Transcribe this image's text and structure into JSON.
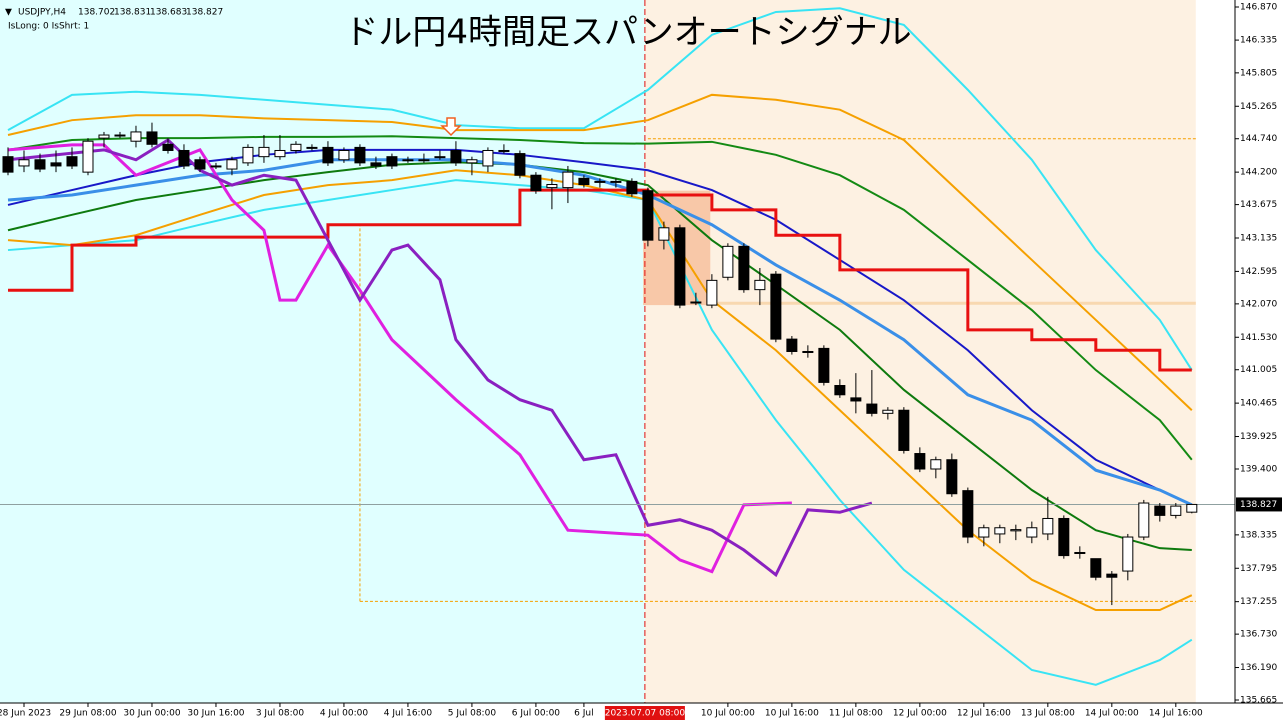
{
  "chart_data": {
    "type": "candlestick",
    "title": "ドル円4時間足スパンオートシグナル",
    "symbol": "USDJPY,H4",
    "status": "IsLong: 0 IsShrt: 1",
    "ylim": [
      135.665,
      146.87
    ],
    "yticks": [
      {
        "value": 146.87,
        "label": "146.870"
      },
      146.335,
      145.805,
      145.265,
      {
        "value": 144.74,
        "label": "144.740"
      },
      {
        "value": 144.2,
        "label": "144.200"
      },
      143.675,
      143.135,
      142.595,
      {
        "value": 142.07,
        "label": "142.070"
      },
      {
        "value": 141.53,
        "label": "141.530"
      },
      141.005,
      140.465,
      139.925,
      {
        "value": 139.4,
        "label": "139.400"
      },
      138.335,
      137.795,
      137.255,
      {
        "value": 136.73,
        "label": "136.730"
      },
      {
        "value": 136.19,
        "label": "136.190"
      },
      135.665
    ],
    "xlim": [
      -0.5,
      76.7
    ],
    "xticks": [
      {
        "value": 1,
        "label": "28 Jun 2023"
      },
      {
        "value": 5,
        "label": "29 Jun 08:00"
      },
      {
        "value": 9,
        "label": "30 Jun 00:00"
      },
      {
        "value": 13,
        "label": "30 Jun 16:00"
      },
      {
        "value": 17,
        "label": "3 Jul 08:00"
      },
      {
        "value": 21,
        "label": "4 Jul 00:00"
      },
      {
        "value": 25,
        "label": "4 Jul 16:00"
      },
      {
        "value": 29,
        "label": "5 Jul 08:00"
      },
      {
        "value": 33,
        "label": "6 Jul 00:00"
      },
      {
        "value": 36,
        "label": "6 Jul"
      },
      {
        "value": 45,
        "label": "10 Jul 00:00"
      },
      {
        "value": 49,
        "label": "10 Jul 16:00"
      },
      {
        "value": 53,
        "label": "11 Jul 08:00"
      },
      {
        "value": 57,
        "label": "12 Jul 00:00"
      },
      {
        "value": 61,
        "label": "12 Jul 16:00"
      },
      {
        "value": 65,
        "label": "13 Jul 08:00"
      },
      {
        "value": 69,
        "label": "14 Jul 00:00"
      },
      {
        "value": 73,
        "label": "14 Jul 16:00"
      }
    ],
    "marker": {
      "value": 40,
      "label": "2023.07.07 08:00",
      "color": "#e01010"
    },
    "last": 138.827,
    "zone": {
      "x": [
        39.7,
        43.9
      ],
      "y": [
        142.05,
        143.9
      ],
      "color": "#f8c8a8"
    },
    "hlines": [
      {
        "x0": 40,
        "value": 144.74,
        "color": "#f5a000"
      },
      {
        "x0": 22,
        "value": 137.26,
        "color": "#f5a000"
      },
      {
        "x0": 44,
        "value": 142.08,
        "color": "#f8d8b0"
      }
    ],
    "vline": {
      "x": 22,
      "y": [
        137.26,
        143.35
      ],
      "color": "#f5a000"
    },
    "up_color": "#ffffff",
    "down_color": "#000000",
    "candles": [
      [
        144.45,
        144.6,
        144.15,
        144.2
      ],
      [
        144.3,
        144.55,
        144.2,
        144.4
      ],
      [
        144.4,
        144.5,
        144.2,
        144.25
      ],
      [
        144.35,
        144.55,
        144.2,
        144.3
      ],
      [
        144.45,
        144.6,
        144.25,
        144.3
      ],
      [
        144.2,
        144.75,
        144.15,
        144.7
      ],
      [
        144.75,
        144.85,
        144.6,
        144.8
      ],
      [
        144.8,
        144.85,
        144.75,
        144.8
      ],
      [
        144.7,
        144.95,
        144.6,
        144.85
      ],
      [
        144.85,
        145.0,
        144.6,
        144.65
      ],
      [
        144.65,
        144.75,
        144.5,
        144.55
      ],
      [
        144.55,
        144.65,
        144.25,
        144.3
      ],
      [
        144.4,
        144.45,
        144.2,
        144.25
      ],
      [
        144.3,
        144.35,
        144.25,
        144.3
      ],
      [
        144.25,
        144.45,
        144.15,
        144.4
      ],
      [
        144.35,
        144.65,
        144.3,
        144.6
      ],
      [
        144.45,
        144.8,
        144.35,
        144.6
      ],
      [
        144.45,
        144.8,
        144.4,
        144.55
      ],
      [
        144.55,
        144.7,
        144.5,
        144.65
      ],
      [
        144.6,
        144.65,
        144.55,
        144.6
      ],
      [
        144.6,
        144.7,
        144.3,
        144.35
      ],
      [
        144.4,
        144.6,
        144.35,
        144.55
      ],
      [
        144.6,
        144.65,
        144.3,
        144.35
      ],
      [
        144.35,
        144.45,
        144.25,
        144.3
      ],
      [
        144.45,
        144.5,
        144.25,
        144.3
      ],
      [
        144.4,
        144.45,
        144.35,
        144.4
      ],
      [
        144.4,
        144.5,
        144.35,
        144.4
      ],
      [
        144.45,
        144.55,
        144.4,
        144.45
      ],
      [
        144.55,
        144.7,
        144.3,
        144.35
      ],
      [
        144.35,
        144.45,
        144.15,
        144.4
      ],
      [
        144.3,
        144.6,
        144.2,
        144.55
      ],
      [
        144.55,
        144.65,
        144.5,
        144.55
      ],
      [
        144.5,
        144.55,
        144.1,
        144.15
      ],
      [
        144.15,
        144.2,
        143.85,
        143.9
      ],
      [
        143.95,
        144.1,
        143.6,
        144.0
      ],
      [
        143.95,
        144.3,
        143.7,
        144.2
      ],
      [
        144.1,
        144.15,
        143.95,
        144.0
      ],
      [
        144.05,
        144.1,
        143.95,
        144.05
      ],
      [
        144.05,
        144.1,
        143.95,
        144.05
      ],
      [
        144.05,
        144.1,
        143.8,
        143.85
      ],
      [
        143.9,
        143.95,
        143.0,
        143.1
      ],
      [
        143.1,
        143.4,
        142.95,
        143.3
      ],
      [
        143.3,
        143.35,
        142.0,
        142.05
      ],
      [
        142.1,
        142.25,
        142.05,
        142.1
      ],
      [
        142.05,
        142.55,
        142.0,
        142.45
      ],
      [
        142.5,
        143.05,
        142.45,
        143.0
      ],
      [
        143.0,
        143.05,
        142.25,
        142.3
      ],
      [
        142.3,
        142.65,
        142.05,
        142.45
      ],
      [
        142.55,
        142.6,
        141.45,
        141.5
      ],
      [
        141.5,
        141.55,
        141.25,
        141.3
      ],
      [
        141.3,
        141.4,
        141.2,
        141.3
      ],
      [
        141.35,
        141.4,
        140.75,
        140.8
      ],
      [
        140.75,
        140.85,
        140.55,
        140.6
      ],
      [
        140.55,
        140.95,
        140.3,
        140.5
      ],
      [
        140.45,
        141.0,
        140.25,
        140.3
      ],
      [
        140.3,
        140.4,
        140.2,
        140.35
      ],
      [
        140.35,
        140.4,
        139.65,
        139.7
      ],
      [
        139.65,
        139.75,
        139.35,
        139.4
      ],
      [
        139.4,
        139.6,
        139.25,
        139.55
      ],
      [
        139.55,
        139.65,
        138.95,
        139.0
      ],
      [
        139.05,
        139.1,
        138.2,
        138.3
      ],
      [
        138.3,
        138.5,
        138.15,
        138.45
      ],
      [
        138.35,
        138.5,
        138.2,
        138.45
      ],
      [
        138.4,
        138.5,
        138.25,
        138.42
      ],
      [
        138.3,
        138.55,
        138.2,
        138.45
      ],
      [
        138.35,
        138.95,
        138.25,
        138.6
      ],
      [
        138.6,
        138.65,
        137.95,
        138.0
      ],
      [
        138.05,
        138.15,
        137.95,
        138.05
      ],
      [
        137.95,
        137.95,
        137.6,
        137.65
      ],
      [
        137.7,
        137.75,
        137.2,
        137.65
      ],
      [
        137.75,
        138.35,
        137.6,
        138.3
      ],
      [
        138.3,
        138.9,
        138.25,
        138.85
      ],
      [
        138.8,
        138.85,
        138.55,
        138.65
      ],
      [
        138.65,
        138.85,
        138.6,
        138.8
      ],
      [
        138.702,
        138.831,
        138.683,
        138.827
      ]
    ],
    "series": [
      {
        "color": "#38e4f4",
        "width": 2,
        "x": [
          0,
          4,
          8,
          12,
          16,
          20,
          24,
          28,
          32,
          36,
          40,
          44,
          48,
          52,
          56,
          60,
          64,
          68,
          72,
          74
        ],
        "values": [
          144.88,
          145.45,
          145.5,
          145.45,
          145.37,
          145.29,
          145.21,
          144.96,
          144.91,
          144.91,
          145.53,
          146.42,
          146.79,
          146.85,
          146.58,
          145.53,
          144.4,
          142.94,
          141.81,
          141.0
        ]
      },
      {
        "color": "#38e4f4",
        "width": 2,
        "x": [
          0,
          4,
          8,
          12,
          16,
          20,
          24,
          28,
          32,
          36,
          40,
          44,
          48,
          52,
          56,
          60,
          64,
          68,
          72,
          74
        ],
        "values": [
          142.94,
          143.02,
          143.1,
          143.35,
          143.59,
          143.75,
          143.91,
          144.07,
          143.99,
          143.91,
          143.75,
          141.65,
          140.19,
          138.9,
          137.77,
          136.96,
          136.15,
          135.91,
          136.31,
          136.64
        ]
      },
      {
        "color": "#f5a000",
        "width": 2,
        "x": [
          0,
          4,
          8,
          12,
          16,
          20,
          24,
          28,
          32,
          36,
          40,
          44,
          48,
          52,
          56,
          60,
          64,
          68,
          72,
          74
        ],
        "values": [
          144.8,
          145.04,
          145.12,
          145.12,
          145.07,
          145.04,
          145.01,
          144.88,
          144.88,
          144.88,
          145.04,
          145.45,
          145.37,
          145.21,
          144.72,
          143.75,
          142.78,
          141.81,
          140.84,
          140.35
        ]
      },
      {
        "color": "#f5a000",
        "width": 2,
        "x": [
          0,
          4,
          8,
          12,
          16,
          20,
          24,
          28,
          32,
          36,
          40,
          44,
          48,
          52,
          56,
          60,
          64,
          68,
          72,
          74
        ],
        "values": [
          143.1,
          143.02,
          143.18,
          143.51,
          143.83,
          143.99,
          144.07,
          144.23,
          144.15,
          143.99,
          143.75,
          142.13,
          141.32,
          140.35,
          139.38,
          138.41,
          137.61,
          137.12,
          137.12,
          137.36
        ]
      },
      {
        "color": "#148a14",
        "width": 2,
        "x": [
          0,
          4,
          8,
          12,
          16,
          20,
          24,
          28,
          32,
          36,
          40,
          44,
          48,
          52,
          56,
          60,
          64,
          68,
          72,
          74
        ],
        "values": [
          144.56,
          144.72,
          144.75,
          144.75,
          144.77,
          144.77,
          144.78,
          144.75,
          144.72,
          144.67,
          144.66,
          144.69,
          144.48,
          144.15,
          143.59,
          142.78,
          141.97,
          141.0,
          140.19,
          139.55
        ]
      },
      {
        "color": "#0e7a0e",
        "width": 2,
        "x": [
          0,
          4,
          8,
          12,
          16,
          20,
          24,
          28,
          32,
          36,
          40,
          44,
          48,
          52,
          56,
          60,
          64,
          68,
          72,
          74
        ],
        "values": [
          143.26,
          143.51,
          143.75,
          143.91,
          144.07,
          144.2,
          144.32,
          144.36,
          144.32,
          144.2,
          143.99,
          143.1,
          142.38,
          141.65,
          140.68,
          139.87,
          139.06,
          138.41,
          138.12,
          138.09
        ]
      },
      {
        "color": "#1818c8",
        "width": 2,
        "x": [
          0,
          4,
          8,
          12,
          16,
          20,
          24,
          28,
          32,
          36,
          40,
          44,
          48,
          52,
          56,
          60,
          64,
          68,
          72,
          74
        ],
        "values": [
          143.67,
          143.91,
          144.15,
          144.36,
          144.48,
          144.56,
          144.56,
          144.56,
          144.48,
          144.36,
          144.23,
          143.91,
          143.43,
          142.78,
          142.13,
          141.32,
          140.35,
          139.55,
          139.06,
          138.82
        ]
      },
      {
        "color": "#3a8fe8",
        "width": 3,
        "x": [
          0,
          4,
          8,
          12,
          16,
          20,
          24,
          28,
          32,
          36,
          40,
          44,
          48,
          52,
          56,
          60,
          64,
          68,
          72,
          74
        ],
        "values": [
          143.75,
          143.83,
          143.99,
          144.15,
          144.23,
          144.4,
          144.4,
          144.4,
          144.32,
          144.15,
          143.83,
          143.35,
          142.7,
          142.13,
          141.49,
          140.6,
          140.19,
          139.38,
          139.06,
          138.82
        ]
      },
      {
        "color": "#e81010",
        "width": 3,
        "step": true,
        "x": [
          0,
          4,
          8,
          12,
          16,
          20,
          24,
          28,
          32,
          36,
          40,
          44,
          48,
          52,
          56,
          60,
          64,
          68,
          72,
          74
        ],
        "values": [
          142.29,
          143.02,
          143.15,
          143.15,
          143.15,
          143.35,
          143.35,
          143.35,
          143.91,
          143.91,
          143.83,
          143.59,
          143.18,
          142.62,
          142.62,
          141.65,
          141.49,
          141.32,
          141.0,
          141.0
        ]
      },
      {
        "color": "#e020e0",
        "width": 3,
        "x": [
          0,
          4,
          6,
          8,
          12,
          14,
          16,
          17,
          18,
          20,
          22,
          24,
          28,
          32,
          35,
          40,
          42,
          44,
          46,
          49
        ],
        "values": [
          144.56,
          144.64,
          144.64,
          144.15,
          144.56,
          143.75,
          143.26,
          142.13,
          142.13,
          143.02,
          142.29,
          141.49,
          140.52,
          139.63,
          138.41,
          138.33,
          137.93,
          137.74,
          138.82,
          138.85
        ]
      },
      {
        "color": "#8a20c0",
        "width": 3,
        "x": [
          0,
          6,
          8,
          10,
          12,
          14,
          16,
          18,
          20,
          22,
          24,
          25,
          27,
          28,
          30,
          32,
          34,
          36,
          38,
          40,
          42,
          44,
          46,
          48,
          50,
          52,
          54
        ],
        "values": [
          144.4,
          144.56,
          144.4,
          144.72,
          144.23,
          143.99,
          144.15,
          144.07,
          143.1,
          142.13,
          142.94,
          143.02,
          142.46,
          141.49,
          140.84,
          140.52,
          140.35,
          139.55,
          139.63,
          138.49,
          138.58,
          138.41,
          138.09,
          137.69,
          138.74,
          138.7,
          138.85
        ]
      }
    ]
  }
}
